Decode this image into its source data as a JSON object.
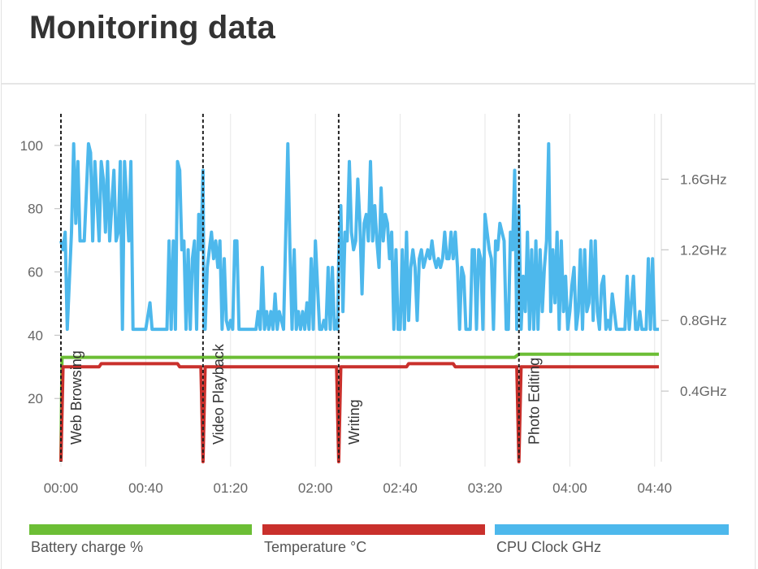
{
  "header": {
    "title": "Monitoring data"
  },
  "chart_data": {
    "type": "line",
    "x_ticks": [
      "00:00",
      "00:40",
      "01:20",
      "02:00",
      "02:40",
      "03:20",
      "04:00",
      "04:40"
    ],
    "x_range_minutes": [
      0,
      282
    ],
    "y_left": {
      "ticks": [
        "20",
        "40",
        "60",
        "80",
        "100"
      ],
      "range": [
        0,
        110
      ]
    },
    "y_right": {
      "ticks": [
        "0.4GHz",
        "0.8GHz",
        "1.2GHz",
        "1.6GHz"
      ],
      "range_ghz": [
        0,
        1.97
      ]
    },
    "grid": "vertical",
    "legend_placement": "bottom",
    "phases": [
      {
        "label": "Web Browsing",
        "x": 0
      },
      {
        "label": "Video Playback",
        "x": 67
      },
      {
        "label": "Writing",
        "x": 131
      },
      {
        "label": "Photo Editing",
        "x": 216
      }
    ],
    "series": [
      {
        "name": "Battery charge %",
        "color": "#6cbe35",
        "axis": "left",
        "points": [
          [
            0,
            0
          ],
          [
            0.5,
            33
          ],
          [
            214,
            33
          ],
          [
            216,
            34
          ],
          [
            282,
            34
          ]
        ]
      },
      {
        "name": "Temperature °C",
        "color": "#c9302c",
        "axis": "left",
        "points": [
          [
            0,
            0
          ],
          [
            1,
            30
          ],
          [
            7,
            30
          ],
          [
            18,
            30
          ],
          [
            19,
            31
          ],
          [
            55,
            31
          ],
          [
            56,
            30
          ],
          [
            66,
            30
          ],
          [
            67,
            0
          ],
          [
            68,
            30
          ],
          [
            130,
            30
          ],
          [
            131,
            0
          ],
          [
            132,
            30
          ],
          [
            163,
            30
          ],
          [
            164,
            31
          ],
          [
            185,
            31
          ],
          [
            186,
            30
          ],
          [
            215,
            30
          ],
          [
            216,
            0
          ],
          [
            217,
            30
          ],
          [
            282,
            30
          ]
        ]
      },
      {
        "name": "CPU Clock GHz",
        "color": "#4db8ec",
        "axis": "right",
        "points": [
          [
            0,
            1.25
          ],
          [
            1,
            1.2
          ],
          [
            2,
            1.3
          ],
          [
            3,
            0.75
          ],
          [
            5,
            1.3
          ],
          [
            6,
            1.8
          ],
          [
            7,
            1.35
          ],
          [
            8,
            1.7
          ],
          [
            9,
            1.25
          ],
          [
            11,
            1.25
          ],
          [
            13,
            1.8
          ],
          [
            14,
            1.75
          ],
          [
            15,
            1.25
          ],
          [
            16,
            1.7
          ],
          [
            18,
            1.25
          ],
          [
            19,
            1.7
          ],
          [
            20,
            1.6
          ],
          [
            21,
            1.3
          ],
          [
            22,
            1.7
          ],
          [
            23,
            1.25
          ],
          [
            25,
            1.65
          ],
          [
            26,
            1.25
          ],
          [
            27,
            1.3
          ],
          [
            28,
            1.7
          ],
          [
            29,
            0.75
          ],
          [
            30,
            1.7
          ],
          [
            32,
            1.25
          ],
          [
            33,
            1.7
          ],
          [
            34,
            0.75
          ],
          [
            37,
            0.75
          ],
          [
            39,
            0.75
          ],
          [
            40,
            0.75
          ],
          [
            42,
            0.9
          ],
          [
            43,
            0.75
          ],
          [
            46,
            0.75
          ],
          [
            50,
            0.75
          ],
          [
            51,
            1.25
          ],
          [
            52,
            0.75
          ],
          [
            53,
            1.25
          ],
          [
            54,
            0.75
          ],
          [
            55,
            1.7
          ],
          [
            56,
            1.65
          ],
          [
            57,
            1.2
          ],
          [
            58,
            1.25
          ],
          [
            59,
            0.75
          ],
          [
            60,
            1.2
          ],
          [
            61,
            0.75
          ],
          [
            62,
            1.15
          ],
          [
            63,
            1.25
          ],
          [
            64,
            0.75
          ],
          [
            65,
            1.4
          ],
          [
            66,
            1.2
          ],
          [
            67,
            1.65
          ],
          [
            67.5,
            0.75
          ],
          [
            68,
            0.75
          ],
          [
            69,
            1.1
          ],
          [
            70,
            1.2
          ],
          [
            71,
            1.3
          ],
          [
            72,
            1.15
          ],
          [
            73,
            1.25
          ],
          [
            74,
            1.1
          ],
          [
            75,
            1.25
          ],
          [
            76,
            0.75
          ],
          [
            77,
            1.15
          ],
          [
            78,
            0.8
          ],
          [
            79,
            0.75
          ],
          [
            80,
            0.8
          ],
          [
            81,
            0.75
          ],
          [
            82,
            1.25
          ],
          [
            83,
            1.25
          ],
          [
            84,
            0.75
          ],
          [
            86,
            0.75
          ],
          [
            88,
            0.75
          ],
          [
            90,
            0.75
          ],
          [
            92,
            0.75
          ],
          [
            93,
            0.85
          ],
          [
            94,
            0.75
          ],
          [
            95,
            1.1
          ],
          [
            96,
            0.75
          ],
          [
            97,
            0.85
          ],
          [
            98,
            0.75
          ],
          [
            99,
            0.85
          ],
          [
            100,
            0.75
          ],
          [
            101,
            0.95
          ],
          [
            102,
            0.75
          ],
          [
            103,
            0.85
          ],
          [
            105,
            0.75
          ],
          [
            107,
            1.8
          ],
          [
            108,
            1.2
          ],
          [
            109,
            0.75
          ],
          [
            110,
            1.2
          ],
          [
            111,
            0.75
          ],
          [
            112,
            0.85
          ],
          [
            113,
            0.75
          ],
          [
            114,
            0.85
          ],
          [
            115,
            0.75
          ],
          [
            116,
            0.9
          ],
          [
            117,
            0.75
          ],
          [
            118,
            1.15
          ],
          [
            119,
            0.75
          ],
          [
            120,
            1.25
          ],
          [
            121,
            1.0
          ],
          [
            122,
            0.75
          ],
          [
            123,
            0.75
          ],
          [
            124,
            0.8
          ],
          [
            125,
            0.75
          ],
          [
            126,
            1.1
          ],
          [
            127,
            0.75
          ],
          [
            128,
            1.1
          ],
          [
            129,
            0.75
          ],
          [
            130,
            0.8
          ],
          [
            130.5,
            0.75
          ],
          [
            131,
            1.15
          ],
          [
            132,
            1.45
          ],
          [
            133,
            0.85
          ],
          [
            134,
            1.3
          ],
          [
            135,
            1.25
          ],
          [
            136,
            1.7
          ],
          [
            137,
            1.3
          ],
          [
            138,
            1.2
          ],
          [
            139,
            1.25
          ],
          [
            140,
            1.6
          ],
          [
            141,
            1.35
          ],
          [
            142,
            0.95
          ],
          [
            143,
            1.35
          ],
          [
            144,
            1.4
          ],
          [
            145,
            1.25
          ],
          [
            146,
            1.7
          ],
          [
            147,
            1.25
          ],
          [
            148,
            1.45
          ],
          [
            149,
            1.25
          ],
          [
            150,
            1.1
          ],
          [
            151,
            1.55
          ],
          [
            152,
            1.25
          ],
          [
            153,
            1.4
          ],
          [
            154,
            1.35
          ],
          [
            155,
            1.15
          ],
          [
            156,
            1.3
          ],
          [
            157,
            0.75
          ],
          [
            158,
            1.2
          ],
          [
            159,
            0.75
          ],
          [
            160,
            0.75
          ],
          [
            161,
            1.2
          ],
          [
            162,
            0.75
          ],
          [
            163,
            1.3
          ],
          [
            164,
            0.8
          ],
          [
            165,
            1.1
          ],
          [
            166,
            1.2
          ],
          [
            167,
            1.1
          ],
          [
            168,
            0.8
          ],
          [
            169,
            1.15
          ],
          [
            170,
            1.2
          ],
          [
            171,
            1.1
          ],
          [
            172,
            1.15
          ],
          [
            173,
            1.2
          ],
          [
            174,
            1.15
          ],
          [
            175,
            1.25
          ],
          [
            176,
            1.15
          ],
          [
            177,
            1.1
          ],
          [
            178,
            1.15
          ],
          [
            179,
            1.1
          ],
          [
            180,
            1.15
          ],
          [
            181,
            1.3
          ],
          [
            182,
            1.15
          ],
          [
            183,
            1.15
          ],
          [
            184,
            1.3
          ],
          [
            185,
            1.15
          ],
          [
            186,
            1.3
          ],
          [
            187,
            1.1
          ],
          [
            188,
            0.75
          ],
          [
            189,
            1.1
          ],
          [
            190,
            1.05
          ],
          [
            191,
            0.75
          ],
          [
            192,
            0.75
          ],
          [
            193,
            0.75
          ],
          [
            194,
            1.2
          ],
          [
            195,
            1.2
          ],
          [
            196,
            0.75
          ],
          [
            197,
            1.2
          ],
          [
            198,
            1.15
          ],
          [
            199,
            0.75
          ],
          [
            200,
            1.4
          ],
          [
            201,
            1.3
          ],
          [
            202,
            1.2
          ],
          [
            203,
            1.15
          ],
          [
            204,
            0.75
          ],
          [
            205,
            1.25
          ],
          [
            206,
            1.2
          ],
          [
            207,
            1.35
          ],
          [
            208,
            1.3
          ],
          [
            209,
            1.25
          ],
          [
            210,
            0.75
          ],
          [
            211,
            0.75
          ],
          [
            212,
            1.3
          ],
          [
            213,
            1.2
          ],
          [
            214,
            1.65
          ],
          [
            215,
            0.75
          ],
          [
            216,
            1.45
          ],
          [
            217,
            0.75
          ],
          [
            218,
            1.05
          ],
          [
            219,
            0.85
          ],
          [
            220,
            1.3
          ],
          [
            221,
            0.75
          ],
          [
            222,
            1.2
          ],
          [
            223,
            0.75
          ],
          [
            224,
            1.25
          ],
          [
            225,
            0.75
          ],
          [
            226,
            1.2
          ],
          [
            227,
            0.85
          ],
          [
            228,
            1.1
          ],
          [
            229,
            1.25
          ],
          [
            230,
            1.8
          ],
          [
            231,
            0.85
          ],
          [
            232,
            1.2
          ],
          [
            233,
            0.9
          ],
          [
            234,
            1.3
          ],
          [
            235,
            0.75
          ],
          [
            236,
            1.25
          ],
          [
            237,
            0.85
          ],
          [
            238,
            1.05
          ],
          [
            239,
            0.75
          ],
          [
            240,
            0.85
          ],
          [
            241,
            1.0
          ],
          [
            242,
            1.1
          ],
          [
            243,
            0.75
          ],
          [
            244,
            0.85
          ],
          [
            245,
            1.2
          ],
          [
            246,
            0.75
          ],
          [
            247,
            1.2
          ],
          [
            248,
            0.85
          ],
          [
            249,
            0.9
          ],
          [
            250,
            1.25
          ],
          [
            251,
            0.8
          ],
          [
            252,
            1.25
          ],
          [
            253,
            0.85
          ],
          [
            254,
            0.75
          ],
          [
            255,
            1.0
          ],
          [
            256,
            1.05
          ],
          [
            257,
            0.75
          ],
          [
            258,
            0.8
          ],
          [
            259,
            0.75
          ],
          [
            260,
            0.95
          ],
          [
            261,
            0.85
          ],
          [
            262,
            0.75
          ],
          [
            264,
            0.75
          ],
          [
            266,
            0.75
          ],
          [
            267,
            1.05
          ],
          [
            268,
            0.75
          ],
          [
            270,
            1.05
          ],
          [
            271,
            0.75
          ],
          [
            272,
            0.75
          ],
          [
            273,
            0.85
          ],
          [
            274,
            0.75
          ],
          [
            276,
            0.75
          ],
          [
            277,
            1.15
          ],
          [
            278,
            0.75
          ],
          [
            279,
            1.15
          ],
          [
            280,
            0.75
          ],
          [
            282,
            0.75
          ]
        ]
      }
    ]
  },
  "legend": [
    {
      "label": "Battery charge %",
      "color": "#6cbe35"
    },
    {
      "label": "Temperature °C",
      "color": "#c9302c"
    },
    {
      "label": "CPU Clock GHz",
      "color": "#4db8ec"
    }
  ]
}
